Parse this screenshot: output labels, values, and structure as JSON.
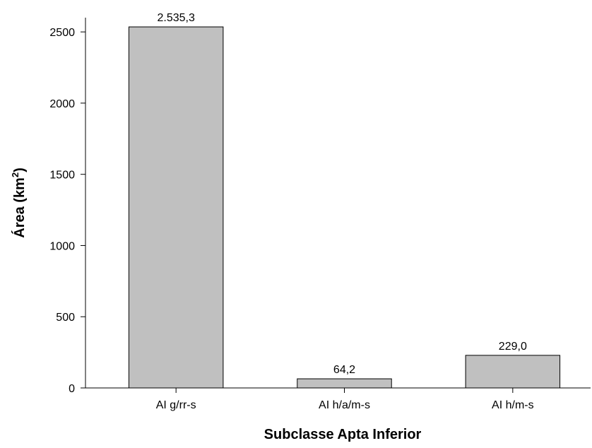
{
  "chart_data": {
    "type": "bar",
    "title": "",
    "xlabel": "Subclasse Apta Inferior",
    "ylabel_main": "Área (km",
    "ylabel_sup": "2",
    "ylabel_close": ")",
    "ylim": [
      0,
      2600
    ],
    "yticks": [
      0,
      500,
      1000,
      1500,
      2000,
      2500
    ],
    "categories": [
      "AI g/rr-s",
      "AI h/a/m-s",
      "AI h/m-s"
    ],
    "values": [
      2535.3,
      64.2,
      229.0
    ],
    "value_labels": [
      "2.535,3",
      "64,2",
      "229,0"
    ],
    "bar_color": "#c0c0c0",
    "grid": false,
    "legend": "none"
  }
}
